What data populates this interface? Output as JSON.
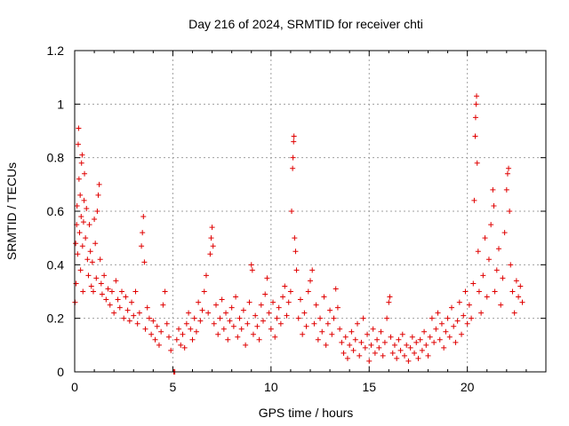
{
  "chart_data": {
    "type": "scatter",
    "title": "Day 216 of 2024, SRMTID for receiver chti",
    "xlabel": "GPS time / hours",
    "ylabel": "SRMTID / TECUs",
    "xlim": [
      0,
      24
    ],
    "ylim": [
      0,
      1.2
    ],
    "xticks": [
      0,
      5,
      10,
      15,
      20
    ],
    "xtick_labels": [
      "0",
      "5",
      "10",
      "15",
      "20"
    ],
    "yticks": [
      0,
      0.2,
      0.4,
      0.6,
      0.8,
      1,
      1.2
    ],
    "ytick_labels": [
      "0",
      "0.2",
      "0.4",
      "0.6",
      "0.8",
      "1",
      "1.2"
    ],
    "grid": true,
    "marker": "+",
    "marker_color": "#e00000",
    "series": [
      {
        "name": "SRMTID",
        "points": [
          [
            0.02,
            0.26
          ],
          [
            0.05,
            0.48
          ],
          [
            0.07,
            0.33
          ],
          [
            0.1,
            0.55
          ],
          [
            0.12,
            0.62
          ],
          [
            0.15,
            0.44
          ],
          [
            0.18,
            0.85
          ],
          [
            0.2,
            0.91
          ],
          [
            0.22,
            0.72
          ],
          [
            0.25,
            0.52
          ],
          [
            0.28,
            0.66
          ],
          [
            0.3,
            0.38
          ],
          [
            0.33,
            0.58
          ],
          [
            0.35,
            0.78
          ],
          [
            0.38,
            0.81
          ],
          [
            0.4,
            0.47
          ],
          [
            0.42,
            0.3
          ],
          [
            0.45,
            0.56
          ],
          [
            0.48,
            0.64
          ],
          [
            0.5,
            0.74
          ],
          [
            0.55,
            0.5
          ],
          [
            0.6,
            0.61
          ],
          [
            0.65,
            0.42
          ],
          [
            0.7,
            0.36
          ],
          [
            0.75,
            0.55
          ],
          [
            0.8,
            0.45
          ],
          [
            0.85,
            0.32
          ],
          [
            0.9,
            0.41
          ],
          [
            0.95,
            0.3
          ],
          [
            1.0,
            0.57
          ],
          [
            1.05,
            0.48
          ],
          [
            1.1,
            0.35
          ],
          [
            1.15,
            0.6
          ],
          [
            1.2,
            0.66
          ],
          [
            1.25,
            0.7
          ],
          [
            1.3,
            0.42
          ],
          [
            1.35,
            0.33
          ],
          [
            1.4,
            0.29
          ],
          [
            1.5,
            0.36
          ],
          [
            1.6,
            0.27
          ],
          [
            1.7,
            0.31
          ],
          [
            1.8,
            0.25
          ],
          [
            1.9,
            0.3
          ],
          [
            2.0,
            0.22
          ],
          [
            2.1,
            0.34
          ],
          [
            2.2,
            0.27
          ],
          [
            2.3,
            0.24
          ],
          [
            2.4,
            0.3
          ],
          [
            2.5,
            0.2
          ],
          [
            2.6,
            0.28
          ],
          [
            2.7,
            0.23
          ],
          [
            2.8,
            0.19
          ],
          [
            2.9,
            0.26
          ],
          [
            3.0,
            0.21
          ],
          [
            3.1,
            0.3
          ],
          [
            3.2,
            0.18
          ],
          [
            3.3,
            0.22
          ],
          [
            3.4,
            0.47
          ],
          [
            3.45,
            0.52
          ],
          [
            3.5,
            0.58
          ],
          [
            3.55,
            0.41
          ],
          [
            3.6,
            0.16
          ],
          [
            3.7,
            0.24
          ],
          [
            3.8,
            0.2
          ],
          [
            3.9,
            0.14
          ],
          [
            4.0,
            0.19
          ],
          [
            4.1,
            0.12
          ],
          [
            4.2,
            0.17
          ],
          [
            4.3,
            0.1
          ],
          [
            4.4,
            0.15
          ],
          [
            4.5,
            0.25
          ],
          [
            4.6,
            0.3
          ],
          [
            4.7,
            0.18
          ],
          [
            4.8,
            0.13
          ],
          [
            4.9,
            0.08
          ],
          [
            5.05,
            0.0
          ],
          [
            5.1,
            0.0
          ],
          [
            5.2,
            0.12
          ],
          [
            5.3,
            0.16
          ],
          [
            5.4,
            0.1
          ],
          [
            5.5,
            0.14
          ],
          [
            5.6,
            0.09
          ],
          [
            5.7,
            0.18
          ],
          [
            5.8,
            0.22
          ],
          [
            5.9,
            0.16
          ],
          [
            6.0,
            0.12
          ],
          [
            6.1,
            0.2
          ],
          [
            6.2,
            0.15
          ],
          [
            6.3,
            0.26
          ],
          [
            6.4,
            0.19
          ],
          [
            6.5,
            0.23
          ],
          [
            6.6,
            0.3
          ],
          [
            6.7,
            0.36
          ],
          [
            6.8,
            0.22
          ],
          [
            6.9,
            0.44
          ],
          [
            6.95,
            0.5
          ],
          [
            7.0,
            0.54
          ],
          [
            7.05,
            0.47
          ],
          [
            7.1,
            0.18
          ],
          [
            7.2,
            0.25
          ],
          [
            7.3,
            0.14
          ],
          [
            7.4,
            0.2
          ],
          [
            7.5,
            0.27
          ],
          [
            7.6,
            0.16
          ],
          [
            7.7,
            0.22
          ],
          [
            7.8,
            0.12
          ],
          [
            7.9,
            0.19
          ],
          [
            8.0,
            0.24
          ],
          [
            8.1,
            0.17
          ],
          [
            8.2,
            0.28
          ],
          [
            8.3,
            0.13
          ],
          [
            8.4,
            0.2
          ],
          [
            8.5,
            0.16
          ],
          [
            8.6,
            0.23
          ],
          [
            8.7,
            0.1
          ],
          [
            8.8,
            0.18
          ],
          [
            8.9,
            0.26
          ],
          [
            9.0,
            0.4
          ],
          [
            9.05,
            0.38
          ],
          [
            9.1,
            0.14
          ],
          [
            9.2,
            0.21
          ],
          [
            9.3,
            0.17
          ],
          [
            9.4,
            0.12
          ],
          [
            9.5,
            0.25
          ],
          [
            9.6,
            0.19
          ],
          [
            9.7,
            0.29
          ],
          [
            9.8,
            0.35
          ],
          [
            9.9,
            0.22
          ],
          [
            10.0,
            0.16
          ],
          [
            10.1,
            0.26
          ],
          [
            10.2,
            0.13
          ],
          [
            10.3,
            0.2
          ],
          [
            10.4,
            0.24
          ],
          [
            10.5,
            0.18
          ],
          [
            10.6,
            0.28
          ],
          [
            10.7,
            0.32
          ],
          [
            10.8,
            0.21
          ],
          [
            10.9,
            0.26
          ],
          [
            11.0,
            0.3
          ],
          [
            11.05,
            0.6
          ],
          [
            11.1,
            0.76
          ],
          [
            11.12,
            0.8
          ],
          [
            11.15,
            0.86
          ],
          [
            11.17,
            0.88
          ],
          [
            11.2,
            0.5
          ],
          [
            11.25,
            0.45
          ],
          [
            11.3,
            0.38
          ],
          [
            11.4,
            0.2
          ],
          [
            11.5,
            0.27
          ],
          [
            11.6,
            0.14
          ],
          [
            11.7,
            0.22
          ],
          [
            11.8,
            0.17
          ],
          [
            11.9,
            0.3
          ],
          [
            12.0,
            0.34
          ],
          [
            12.1,
            0.38
          ],
          [
            12.2,
            0.18
          ],
          [
            12.3,
            0.25
          ],
          [
            12.4,
            0.12
          ],
          [
            12.5,
            0.2
          ],
          [
            12.6,
            0.15
          ],
          [
            12.7,
            0.28
          ],
          [
            12.8,
            0.1
          ],
          [
            12.9,
            0.18
          ],
          [
            13.0,
            0.23
          ],
          [
            13.1,
            0.14
          ],
          [
            13.2,
            0.2
          ],
          [
            13.3,
            0.31
          ],
          [
            13.4,
            0.24
          ],
          [
            13.5,
            0.16
          ],
          [
            13.6,
            0.11
          ],
          [
            13.7,
            0.07
          ],
          [
            13.8,
            0.13
          ],
          [
            13.9,
            0.05
          ],
          [
            14.0,
            0.1
          ],
          [
            14.1,
            0.15
          ],
          [
            14.2,
            0.08
          ],
          [
            14.3,
            0.12
          ],
          [
            14.4,
            0.18
          ],
          [
            14.5,
            0.06
          ],
          [
            14.6,
            0.11
          ],
          [
            14.7,
            0.2
          ],
          [
            14.8,
            0.09
          ],
          [
            14.9,
            0.14
          ],
          [
            15.0,
            0.04
          ],
          [
            15.1,
            0.1
          ],
          [
            15.2,
            0.16
          ],
          [
            15.3,
            0.07
          ],
          [
            15.4,
            0.12
          ],
          [
            15.5,
            0.09
          ],
          [
            15.6,
            0.15
          ],
          [
            15.7,
            0.06
          ],
          [
            15.8,
            0.11
          ],
          [
            15.9,
            0.2
          ],
          [
            16.0,
            0.26
          ],
          [
            16.05,
            0.28
          ],
          [
            16.1,
            0.13
          ],
          [
            16.2,
            0.07
          ],
          [
            16.3,
            0.1
          ],
          [
            16.4,
            0.05
          ],
          [
            16.5,
            0.12
          ],
          [
            16.6,
            0.08
          ],
          [
            16.7,
            0.14
          ],
          [
            16.8,
            0.06
          ],
          [
            16.9,
            0.1
          ],
          [
            17.0,
            0.04
          ],
          [
            17.1,
            0.09
          ],
          [
            17.2,
            0.13
          ],
          [
            17.3,
            0.07
          ],
          [
            17.4,
            0.11
          ],
          [
            17.5,
            0.05
          ],
          [
            17.6,
            0.12
          ],
          [
            17.7,
            0.08
          ],
          [
            17.8,
            0.15
          ],
          [
            17.9,
            0.1
          ],
          [
            18.0,
            0.06
          ],
          [
            18.1,
            0.13
          ],
          [
            18.2,
            0.2
          ],
          [
            18.3,
            0.11
          ],
          [
            18.4,
            0.16
          ],
          [
            18.5,
            0.22
          ],
          [
            18.6,
            0.12
          ],
          [
            18.7,
            0.18
          ],
          [
            18.8,
            0.09
          ],
          [
            18.9,
            0.15
          ],
          [
            19.0,
            0.2
          ],
          [
            19.1,
            0.13
          ],
          [
            19.2,
            0.24
          ],
          [
            19.3,
            0.17
          ],
          [
            19.4,
            0.11
          ],
          [
            19.5,
            0.19
          ],
          [
            19.6,
            0.26
          ],
          [
            19.7,
            0.14
          ],
          [
            19.8,
            0.21
          ],
          [
            19.9,
            0.3
          ],
          [
            20.0,
            0.18
          ],
          [
            20.1,
            0.25
          ],
          [
            20.2,
            0.2
          ],
          [
            20.3,
            0.33
          ],
          [
            20.35,
            0.64
          ],
          [
            20.4,
            0.88
          ],
          [
            20.42,
            0.95
          ],
          [
            20.45,
            1.0
          ],
          [
            20.47,
            1.03
          ],
          [
            20.5,
            0.78
          ],
          [
            20.55,
            0.45
          ],
          [
            20.6,
            0.3
          ],
          [
            20.7,
            0.22
          ],
          [
            20.8,
            0.36
          ],
          [
            20.9,
            0.5
          ],
          [
            21.0,
            0.28
          ],
          [
            21.1,
            0.42
          ],
          [
            21.2,
            0.55
          ],
          [
            21.3,
            0.68
          ],
          [
            21.35,
            0.62
          ],
          [
            21.4,
            0.3
          ],
          [
            21.5,
            0.38
          ],
          [
            21.6,
            0.46
          ],
          [
            21.7,
            0.25
          ],
          [
            21.8,
            0.35
          ],
          [
            21.9,
            0.52
          ],
          [
            22.0,
            0.68
          ],
          [
            22.05,
            0.74
          ],
          [
            22.1,
            0.76
          ],
          [
            22.15,
            0.6
          ],
          [
            22.2,
            0.4
          ],
          [
            22.3,
            0.3
          ],
          [
            22.4,
            0.22
          ],
          [
            22.5,
            0.34
          ],
          [
            22.6,
            0.28
          ],
          [
            22.7,
            0.32
          ],
          [
            22.8,
            0.26
          ]
        ]
      }
    ]
  }
}
